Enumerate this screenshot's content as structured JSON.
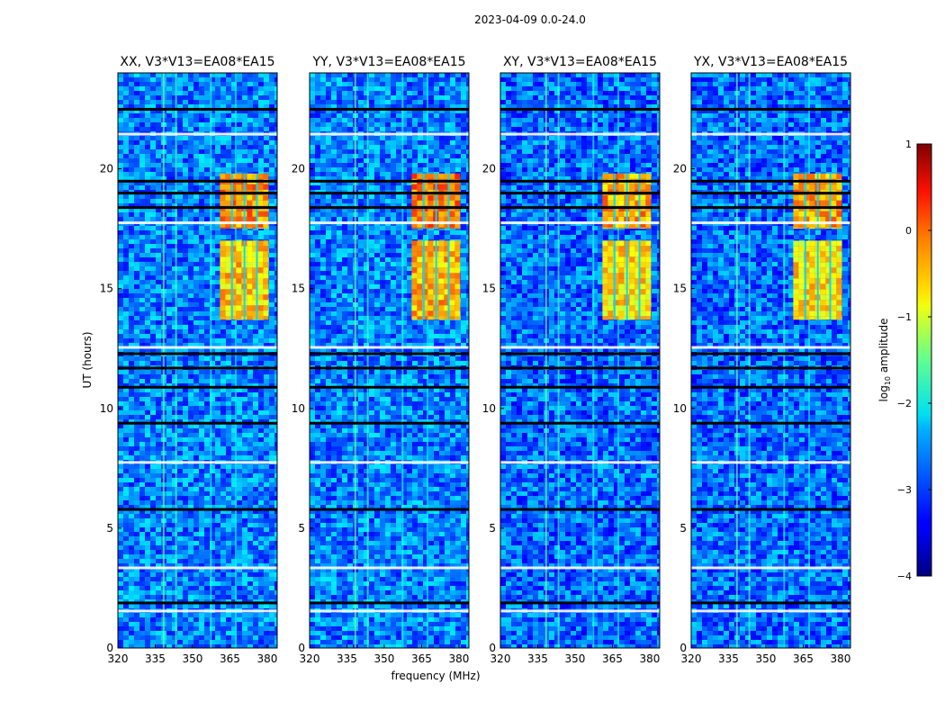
{
  "figure_title": "2023-04-09 0.0-24.0",
  "xlabel": "frequency (MHz)",
  "ylabel": "UT (hours)",
  "colorbar": {
    "label_prefix": "log",
    "label_sub": "10",
    "label_suffix": " amplitude",
    "ticks": [
      "1",
      "0",
      "−1",
      "−2",
      "−3",
      "−4"
    ],
    "range": [
      -4,
      1
    ],
    "colormap": "jet"
  },
  "chart_data": [
    {
      "type": "heatmap",
      "title": "XX, V3*V13=EA08*EA15",
      "x_ticks": [
        "320",
        "335",
        "350",
        "365",
        "380"
      ],
      "y_ticks": [
        "0",
        "5",
        "10",
        "15",
        "20"
      ],
      "xlim": [
        320,
        384
      ],
      "ylim": [
        0,
        24
      ],
      "xlabel": "frequency (MHz)",
      "ylabel": "UT (hours)",
      "background_log10_amplitude": -2.7,
      "rfi_band_mhz": [
        361,
        380
      ],
      "rfi_band_hours": [
        [
          13.7,
          17.0
        ],
        [
          17.5,
          19.8
        ]
      ],
      "rfi_log10_amplitude": -0.4,
      "flagged_hours": [
        1.9,
        5.8,
        9.4,
        10.9,
        11.7,
        12.3,
        18.4,
        19.0,
        19.5,
        22.5
      ]
    },
    {
      "type": "heatmap",
      "title": "YY, V3*V13=EA08*EA15",
      "x_ticks": [
        "320",
        "335",
        "350",
        "365",
        "380"
      ],
      "y_ticks": [
        "0",
        "5",
        "10",
        "15",
        "20"
      ],
      "xlim": [
        320,
        384
      ],
      "ylim": [
        0,
        24
      ],
      "xlabel": "frequency (MHz)",
      "ylabel": "",
      "background_log10_amplitude": -2.7,
      "rfi_band_mhz": [
        361,
        380
      ],
      "rfi_band_hours": [
        [
          13.7,
          17.0
        ],
        [
          17.5,
          19.8
        ]
      ],
      "rfi_log10_amplitude": -0.3,
      "flagged_hours": [
        1.9,
        5.8,
        9.4,
        10.9,
        11.7,
        12.3,
        18.4,
        19.0,
        19.5,
        22.5
      ]
    },
    {
      "type": "heatmap",
      "title": "XY, V3*V13=EA08*EA15",
      "x_ticks": [
        "320",
        "335",
        "350",
        "365",
        "380"
      ],
      "y_ticks": [
        "0",
        "5",
        "10",
        "15",
        "20"
      ],
      "xlim": [
        320,
        384
      ],
      "ylim": [
        0,
        24
      ],
      "xlabel": "frequency (MHz)",
      "ylabel": "",
      "background_log10_amplitude": -2.8,
      "rfi_band_mhz": [
        361,
        380
      ],
      "rfi_band_hours": [
        [
          13.7,
          17.0
        ],
        [
          17.5,
          19.8
        ]
      ],
      "rfi_log10_amplitude": -0.5,
      "flagged_hours": [
        1.9,
        5.8,
        9.4,
        10.9,
        11.7,
        12.3,
        18.4,
        19.0,
        19.5,
        22.5
      ]
    },
    {
      "type": "heatmap",
      "title": "YX, V3*V13=EA08*EA15",
      "x_ticks": [
        "320",
        "335",
        "350",
        "365",
        "380"
      ],
      "y_ticks": [
        "0",
        "5",
        "10",
        "15",
        "20"
      ],
      "xlim": [
        320,
        384
      ],
      "ylim": [
        0,
        24
      ],
      "xlabel": "frequency (MHz)",
      "ylabel": "",
      "background_log10_amplitude": -2.8,
      "rfi_band_mhz": [
        361,
        380
      ],
      "rfi_band_hours": [
        [
          13.7,
          17.0
        ],
        [
          17.5,
          19.8
        ]
      ],
      "rfi_log10_amplitude": -0.5,
      "flagged_hours": [
        1.9,
        5.8,
        9.4,
        10.9,
        11.7,
        12.3,
        18.4,
        19.0,
        19.5,
        22.5
      ]
    }
  ]
}
